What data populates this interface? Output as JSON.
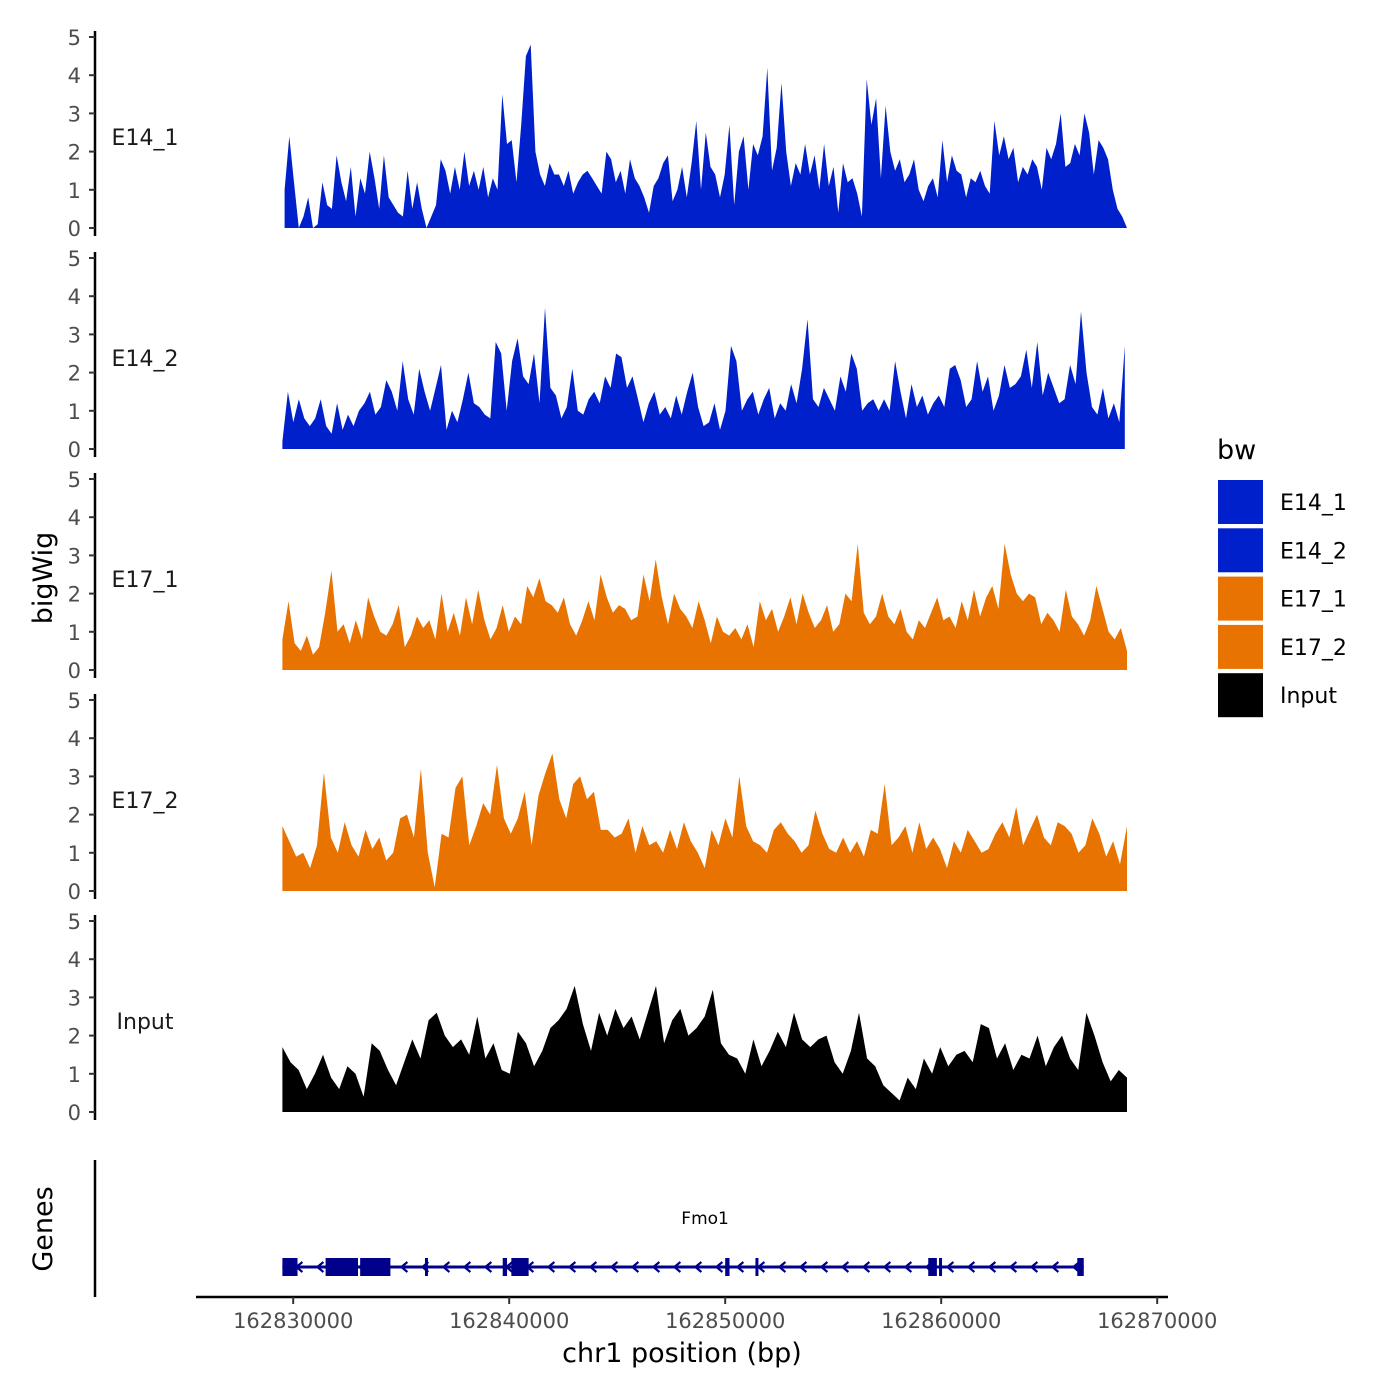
{
  "chart_data": {
    "type": "area",
    "chrom": "chr1",
    "xlabel": "chr1 position (bp)",
    "ylabel": "bigWig",
    "genes_label": "Genes",
    "xlim": [
      162825500,
      162870500
    ],
    "x_ticks": [
      162830000,
      162840000,
      162850000,
      162860000,
      162870000
    ],
    "x_tick_labels": [
      "162830000",
      "162840000",
      "162850000",
      "162860000",
      "162870000"
    ],
    "ylim": [
      0,
      5
    ],
    "y_ticks": [
      0,
      1,
      2,
      3,
      4,
      5
    ],
    "y_tick_labels": [
      "0",
      "1",
      "2",
      "3",
      "4",
      "5"
    ],
    "legend": {
      "title": "bw",
      "position": "right",
      "entries": [
        {
          "label": "E14_1",
          "color": "#0020CC"
        },
        {
          "label": "E14_2",
          "color": "#0020CC"
        },
        {
          "label": "E17_1",
          "color": "#E87300"
        },
        {
          "label": "E17_2",
          "color": "#E87300"
        },
        {
          "label": "Input",
          "color": "#000000"
        }
      ]
    },
    "tracks": [
      {
        "name": "E14_1",
        "color": "#0020CC",
        "x_start": 162829600,
        "x_end": 162868600,
        "values": [
          1.0,
          2.4,
          1.2,
          0.0,
          0.3,
          0.8,
          0.0,
          0.1,
          1.2,
          0.6,
          0.5,
          1.9,
          1.2,
          0.7,
          1.6,
          0.3,
          1.3,
          0.9,
          2.0,
          1.3,
          0.5,
          1.9,
          0.8,
          0.6,
          0.4,
          0.3,
          1.5,
          0.5,
          1.2,
          0.5,
          0.0,
          0.3,
          0.6,
          1.8,
          1.5,
          0.9,
          1.6,
          1.0,
          2.0,
          1.1,
          1.5,
          1.0,
          1.6,
          0.8,
          1.3,
          1.0,
          3.5,
          2.2,
          2.3,
          1.2,
          2.7,
          4.5,
          4.8,
          2.0,
          1.4,
          1.1,
          1.7,
          1.4,
          1.4,
          1.1,
          1.5,
          0.9,
          1.2,
          1.4,
          1.5,
          1.3,
          1.1,
          0.9,
          2.0,
          1.8,
          1.2,
          1.5,
          0.9,
          1.8,
          1.3,
          1.1,
          0.8,
          0.4,
          1.1,
          1.3,
          1.7,
          1.9,
          0.7,
          1.0,
          1.6,
          0.8,
          1.7,
          2.8,
          1.0,
          2.5,
          1.6,
          1.4,
          0.8,
          1.4,
          2.7,
          0.6,
          2.0,
          2.4,
          1.0,
          2.2,
          1.9,
          2.4,
          4.2,
          1.5,
          2.1,
          3.8,
          2.0,
          1.1,
          1.7,
          1.4,
          2.2,
          1.4,
          1.9,
          1.0,
          2.2,
          1.1,
          1.6,
          0.4,
          1.7,
          1.2,
          1.3,
          0.9,
          0.3,
          3.9,
          2.7,
          3.4,
          1.3,
          3.2,
          2.0,
          1.5,
          1.8,
          1.2,
          1.4,
          1.8,
          1.0,
          0.7,
          1.1,
          1.3,
          0.8,
          2.3,
          1.2,
          1.9,
          1.5,
          1.4,
          0.8,
          1.3,
          1.2,
          1.5,
          1.1,
          0.9,
          2.8,
          1.9,
          2.4,
          1.8,
          2.1,
          1.2,
          1.6,
          1.4,
          1.8,
          1.6,
          1.0,
          2.1,
          1.8,
          2.2,
          3.0,
          1.6,
          1.7,
          2.2,
          1.9,
          3.0,
          2.5,
          1.4,
          2.3,
          2.1,
          1.8,
          1.0,
          0.5,
          0.3,
          0.0
        ],
        "nonzero_ratio": 0.95
      },
      {
        "name": "E14_2",
        "color": "#0020CC",
        "x_start": 162829500,
        "x_end": 162868500,
        "values": [
          0.2,
          1.5,
          0.7,
          1.3,
          0.8,
          0.6,
          0.8,
          1.3,
          0.6,
          0.4,
          1.2,
          0.5,
          0.9,
          0.6,
          1.0,
          1.2,
          1.5,
          0.9,
          1.1,
          1.8,
          1.5,
          1.0,
          2.3,
          1.3,
          0.9,
          2.1,
          1.5,
          1.0,
          1.6,
          2.2,
          0.5,
          1.0,
          0.7,
          1.3,
          2.0,
          1.2,
          1.1,
          0.9,
          0.8,
          2.8,
          2.5,
          1.0,
          2.3,
          2.9,
          1.9,
          1.7,
          2.5,
          1.2,
          3.7,
          1.6,
          1.4,
          0.8,
          1.1,
          2.1,
          1.0,
          0.9,
          1.3,
          1.5,
          1.2,
          1.9,
          1.6,
          2.5,
          2.4,
          1.6,
          1.9,
          1.3,
          0.7,
          1.2,
          1.5,
          0.9,
          1.1,
          0.8,
          1.4,
          0.9,
          1.5,
          2.0,
          1.1,
          0.6,
          0.7,
          1.2,
          0.5,
          1.0,
          2.7,
          2.3,
          1.0,
          1.3,
          1.5,
          0.9,
          1.3,
          1.6,
          0.8,
          1.2,
          1.0,
          1.7,
          1.2,
          2.1,
          3.4,
          1.3,
          1.1,
          1.6,
          1.3,
          1.0,
          1.9,
          1.5,
          2.5,
          2.1,
          1.0,
          1.2,
          1.3,
          1.0,
          1.3,
          1.0,
          2.3,
          1.5,
          0.8,
          1.7,
          1.1,
          1.4,
          0.9,
          1.2,
          1.4,
          1.1,
          2.1,
          2.2,
          1.8,
          1.1,
          1.3,
          2.3,
          1.5,
          1.9,
          1.0,
          1.4,
          2.2,
          1.6,
          1.7,
          1.9,
          2.6,
          1.6,
          2.8,
          1.4,
          2.0,
          1.6,
          1.2,
          1.3,
          2.2,
          1.7,
          3.6,
          2.0,
          1.1,
          0.9,
          1.6,
          0.8,
          1.2,
          0.7,
          2.7
        ],
        "nonzero_ratio": 0.93
      },
      {
        "name": "E17_1",
        "color": "#E87300",
        "x_start": 162829500,
        "x_end": 162868600,
        "values": [
          0.8,
          1.8,
          0.7,
          0.5,
          0.9,
          0.4,
          0.6,
          1.5,
          2.6,
          1.0,
          1.2,
          0.7,
          1.3,
          0.8,
          1.9,
          1.4,
          1.0,
          0.9,
          1.2,
          1.7,
          0.6,
          0.9,
          1.4,
          1.1,
          1.3,
          0.8,
          2.0,
          1.0,
          1.5,
          0.9,
          1.9,
          1.2,
          2.1,
          1.3,
          0.8,
          1.1,
          1.7,
          1.0,
          1.4,
          1.2,
          2.2,
          1.9,
          2.4,
          1.8,
          1.7,
          1.5,
          1.9,
          1.2,
          0.9,
          1.3,
          1.8,
          1.3,
          2.5,
          1.9,
          1.5,
          1.7,
          1.6,
          1.3,
          1.4,
          2.5,
          1.8,
          2.9,
          1.9,
          1.2,
          2.0,
          1.6,
          1.4,
          1.1,
          1.8,
          1.3,
          0.7,
          1.4,
          1.0,
          0.9,
          1.1,
          0.8,
          1.2,
          0.6,
          1.8,
          1.3,
          1.6,
          1.0,
          1.4,
          1.9,
          1.2,
          2.0,
          1.5,
          1.1,
          1.3,
          1.7,
          1.0,
          1.2,
          2.0,
          1.8,
          3.3,
          1.5,
          1.2,
          1.4,
          2.0,
          1.4,
          1.2,
          1.6,
          1.0,
          0.8,
          1.3,
          1.1,
          1.5,
          1.9,
          1.3,
          1.4,
          1.1,
          1.8,
          1.3,
          2.1,
          1.4,
          1.9,
          2.2,
          1.6,
          3.3,
          2.5,
          2.0,
          1.8,
          2.0,
          1.9,
          1.2,
          1.5,
          1.3,
          1.0,
          2.1,
          1.4,
          1.2,
          0.9,
          1.3,
          2.2,
          1.6,
          1.0,
          0.8,
          1.1,
          0.5
        ],
        "nonzero_ratio": 0.96
      },
      {
        "name": "E17_2",
        "color": "#E87300",
        "x_start": 162829500,
        "x_end": 162868600,
        "values": [
          1.7,
          1.3,
          0.9,
          1.0,
          0.6,
          1.2,
          3.1,
          1.4,
          1.0,
          1.8,
          1.2,
          0.9,
          1.6,
          1.1,
          1.4,
          0.8,
          1.0,
          1.9,
          2.0,
          1.4,
          3.2,
          1.0,
          0.1,
          1.5,
          1.4,
          2.7,
          3.0,
          1.2,
          1.7,
          2.3,
          2.0,
          3.3,
          1.9,
          1.5,
          1.9,
          2.6,
          1.2,
          2.5,
          3.1,
          3.6,
          2.4,
          1.9,
          2.8,
          3.0,
          2.4,
          2.6,
          1.6,
          1.6,
          1.4,
          1.5,
          1.9,
          1.0,
          1.7,
          1.2,
          1.3,
          1.0,
          1.6,
          1.1,
          1.8,
          1.3,
          1.0,
          0.6,
          1.6,
          1.2,
          1.9,
          1.4,
          3.0,
          1.7,
          1.3,
          1.2,
          1.0,
          1.6,
          1.8,
          1.5,
          1.3,
          1.0,
          1.2,
          2.1,
          1.5,
          1.1,
          1.0,
          1.4,
          1.0,
          1.3,
          0.9,
          1.6,
          1.5,
          2.8,
          1.2,
          1.4,
          1.7,
          1.0,
          1.8,
          1.1,
          1.4,
          1.1,
          0.6,
          1.3,
          1.0,
          1.6,
          1.3,
          1.0,
          1.1,
          1.5,
          1.8,
          1.4,
          2.2,
          1.2,
          1.6,
          2.0,
          1.4,
          1.2,
          1.8,
          1.7,
          1.5,
          1.0,
          1.2,
          1.9,
          1.5,
          0.9,
          1.3,
          0.7,
          1.7
        ],
        "nonzero_ratio": 0.94
      },
      {
        "name": "Input",
        "color": "#000000",
        "x_start": 162829500,
        "x_end": 162868600,
        "values": [
          1.7,
          1.3,
          1.1,
          0.6,
          1.0,
          1.5,
          0.9,
          0.6,
          1.2,
          1.0,
          0.4,
          1.8,
          1.6,
          1.1,
          0.7,
          1.3,
          1.9,
          1.4,
          2.4,
          2.6,
          2.0,
          1.7,
          1.9,
          1.5,
          2.5,
          1.4,
          1.8,
          1.1,
          1.0,
          2.1,
          1.8,
          1.2,
          1.6,
          2.2,
          2.4,
          2.7,
          3.3,
          2.3,
          1.6,
          2.6,
          2.0,
          2.7,
          2.2,
          2.5,
          1.9,
          2.6,
          3.3,
          1.8,
          2.4,
          2.7,
          2.0,
          2.2,
          2.5,
          3.2,
          1.8,
          1.5,
          1.4,
          1.0,
          1.9,
          1.2,
          1.6,
          2.1,
          1.7,
          2.6,
          1.9,
          1.7,
          1.9,
          2.0,
          1.3,
          1.0,
          1.6,
          2.6,
          1.4,
          1.2,
          0.7,
          0.5,
          0.3,
          0.9,
          0.6,
          1.4,
          1.0,
          1.7,
          1.2,
          1.5,
          1.6,
          1.3,
          2.3,
          2.2,
          1.4,
          1.8,
          1.1,
          1.5,
          1.4,
          2.0,
          1.2,
          1.7,
          2.0,
          1.4,
          1.1,
          2.6,
          2.0,
          1.3,
          0.8,
          1.1,
          0.9
        ],
        "nonzero_ratio": 0.9
      }
    ],
    "genes": [
      {
        "name": "Fmo1",
        "strand": "-",
        "start": 162829500,
        "end": 162866600,
        "exons": [
          [
            162829500,
            162830200
          ],
          [
            162831500,
            162833000
          ],
          [
            162833100,
            162834500
          ],
          [
            162836100,
            162836200
          ],
          [
            162839700,
            162839900
          ],
          [
            162840100,
            162840900
          ],
          [
            162850000,
            162850200
          ],
          [
            162851400,
            162851500
          ],
          [
            162859400,
            162859800
          ],
          [
            162859900,
            162860000
          ],
          [
            162866300,
            162866600
          ]
        ]
      }
    ]
  }
}
